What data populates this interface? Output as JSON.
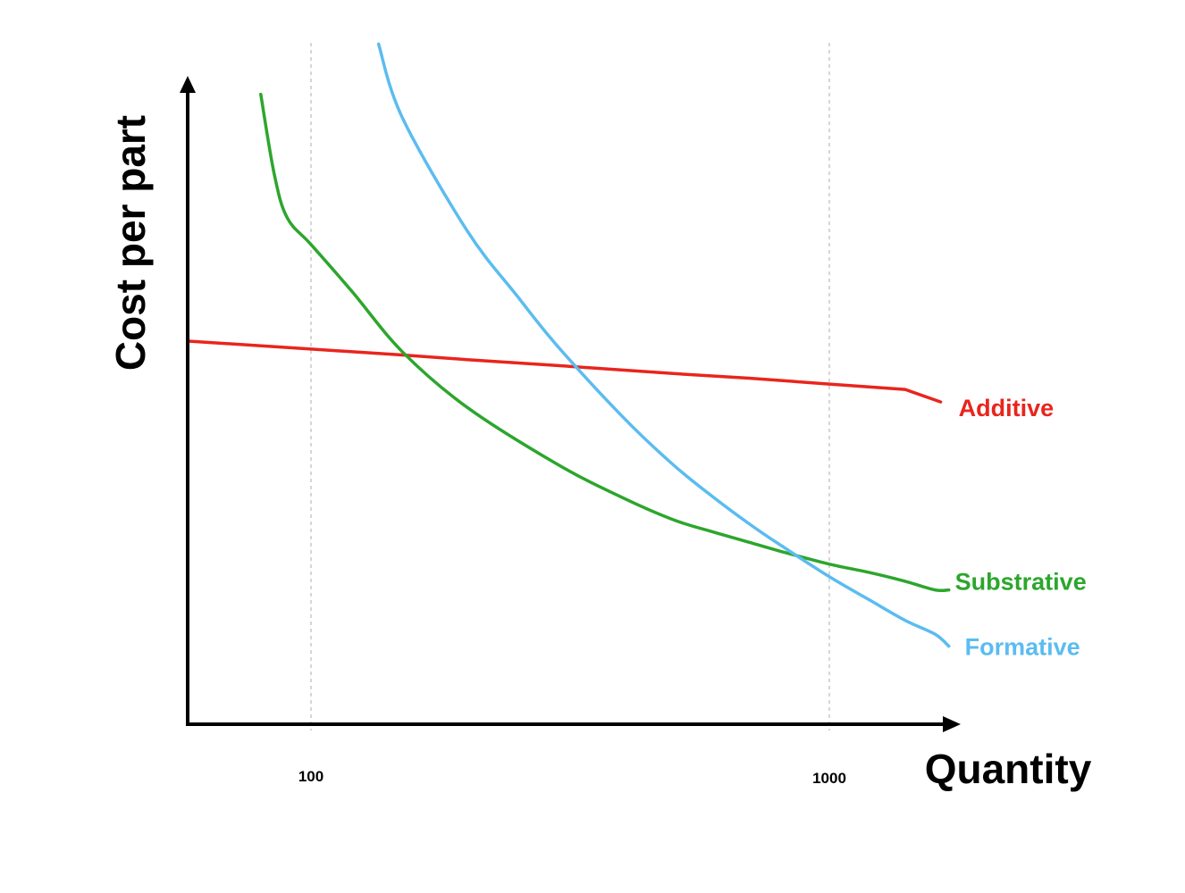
{
  "chart_data": {
    "type": "line",
    "title": "",
    "xlabel": "Quantity",
    "ylabel": "Cost per part",
    "x_scale": "log",
    "x_ticks": [
      100,
      1000
    ],
    "x_tick_labels": [
      "100",
      "1000"
    ],
    "xlim": [
      58,
      1640
    ],
    "ylim": [
      0,
      100
    ],
    "grid": "vertical dashed lines at tick positions",
    "y_tick_labels": false,
    "legend": "inline labels at right end of each line",
    "series": [
      {
        "name": "Additive",
        "color": "#e8251d",
        "x": [
          58,
          100,
          150,
          200,
          300,
          500,
          700,
          1000,
          1400,
          1640
        ],
        "y": [
          57.9,
          56.7,
          55.8,
          55.1,
          54.2,
          53.0,
          52.3,
          51.4,
          50.6,
          48.7
        ]
      },
      {
        "name": "Substrative",
        "color": "#2ca62c",
        "x": [
          80,
          85,
          90,
          100,
          120,
          150,
          200,
          300,
          400,
          500,
          600,
          700,
          800,
          1000,
          1200,
          1400,
          1600,
          1700
        ],
        "y": [
          95.2,
          83.0,
          76.5,
          72.5,
          65.4,
          56.3,
          47.9,
          39.2,
          34.2,
          30.9,
          29.0,
          27.5,
          26.2,
          24.2,
          22.9,
          21.6,
          20.3,
          20.3
        ]
      },
      {
        "name": "Formative",
        "color": "#5bbcf0",
        "x": [
          135,
          150,
          200,
          250,
          300,
          400,
          500,
          600,
          700,
          800,
          1000,
          1200,
          1400,
          1600,
          1700
        ],
        "y": [
          102.8,
          91.7,
          74.6,
          64.7,
          57.0,
          46.4,
          39.2,
          34.2,
          30.3,
          27.2,
          22.3,
          18.7,
          15.7,
          13.6,
          11.8
        ]
      }
    ]
  }
}
